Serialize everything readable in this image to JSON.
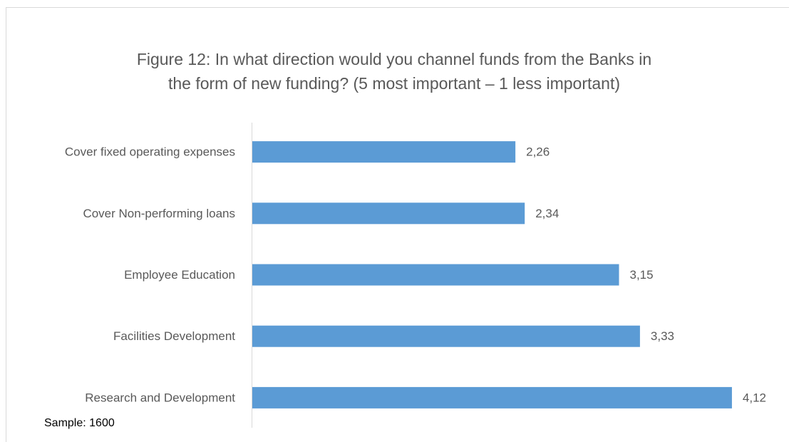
{
  "chart_data": {
    "type": "hbar",
    "title": [
      "Figure 12:  In what direction would you channel funds from the Banks in",
      "the form of new funding? (5 most important – 1 less important)"
    ],
    "categories": [
      "Cover fixed operating expenses",
      "Cover Non-performing loans",
      "Employee Education",
      "Facilities Development",
      "Research and Development"
    ],
    "values": [
      2.26,
      2.34,
      3.15,
      3.33,
      4.12
    ],
    "value_labels": [
      "2,26",
      "2,34",
      "3,15",
      "3,33",
      "4,12"
    ],
    "color": "#5b9bd5",
    "xlim": [
      0,
      4.5
    ],
    "annotation": "Sample: 1600"
  }
}
